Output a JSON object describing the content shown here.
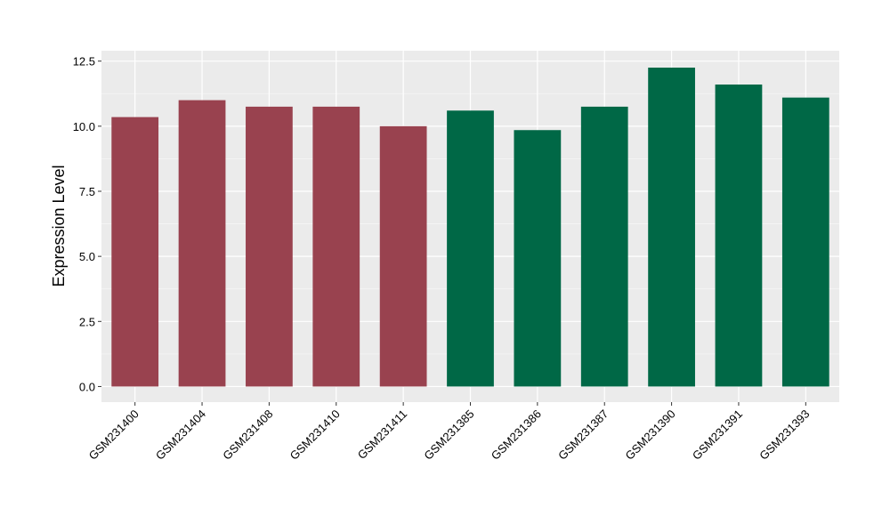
{
  "chart_data": {
    "type": "bar",
    "title": "",
    "xlabel": "",
    "ylabel": "Expression Level",
    "ylim": [
      -0.6,
      12.9
    ],
    "yticks": [
      0.0,
      2.5,
      5.0,
      7.5,
      10.0,
      12.5
    ],
    "ytick_labels": [
      "0.0",
      "2.5",
      "5.0",
      "7.5",
      "10.0",
      "12.5"
    ],
    "grid": true,
    "legend": "none",
    "categories": [
      "GSM231400",
      "GSM231404",
      "GSM231408",
      "GSM231410",
      "GSM231411",
      "GSM231385",
      "GSM231386",
      "GSM231387",
      "GSM231390",
      "GSM231391",
      "GSM231393"
    ],
    "values": [
      10.35,
      11.0,
      10.75,
      10.75,
      10.0,
      10.6,
      9.85,
      10.75,
      12.25,
      11.6,
      11.1
    ],
    "groups": [
      0,
      0,
      0,
      0,
      0,
      1,
      1,
      1,
      1,
      1,
      1
    ],
    "group_colors": [
      "#99424F",
      "#006846"
    ],
    "panel_background": "#EBEBEB",
    "grid_major_color": "#FFFFFF",
    "grid_minor_color": "#F5F5F5",
    "axis_text_color": "#000000"
  }
}
